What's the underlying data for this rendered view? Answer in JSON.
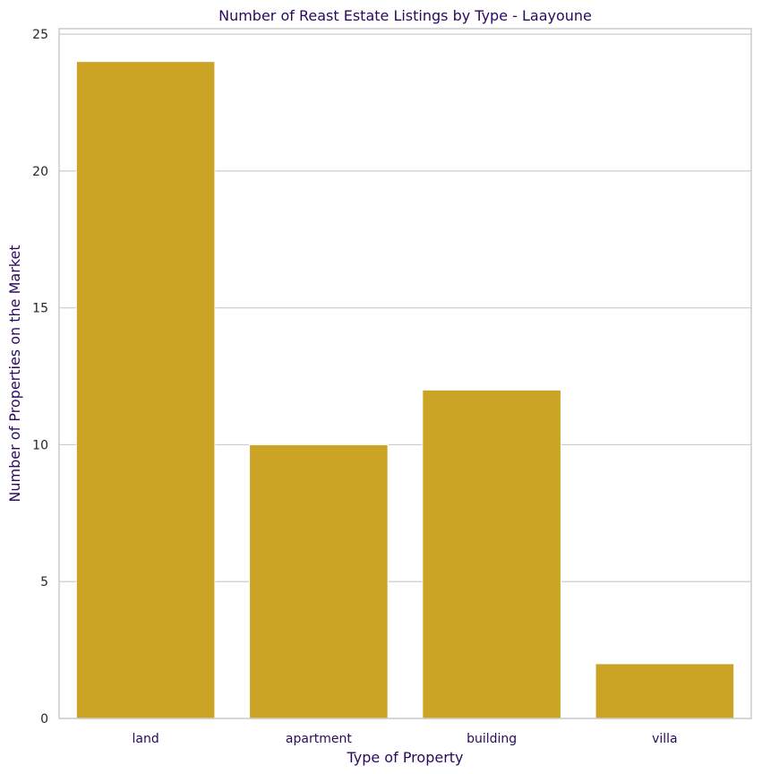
{
  "chart_data": {
    "type": "bar",
    "title": "Number of Reast Estate Listings by Type - Laayoune",
    "xlabel": "Type of Property",
    "ylabel": "Number of Properties on the Market",
    "categories": [
      "land",
      "apartment",
      "building",
      "villa"
    ],
    "values": [
      24,
      10,
      12,
      2
    ],
    "ylim": [
      0,
      25.2
    ],
    "yticks": [
      "0",
      "5",
      "10",
      "15",
      "20",
      "25"
    ],
    "grid": "horizontal",
    "colors": {
      "bar": "#cca425",
      "text_accent": "#2a0a5c",
      "tick_text": "#262626",
      "grid": "#cccccc",
      "spine": "#cccccc"
    }
  }
}
